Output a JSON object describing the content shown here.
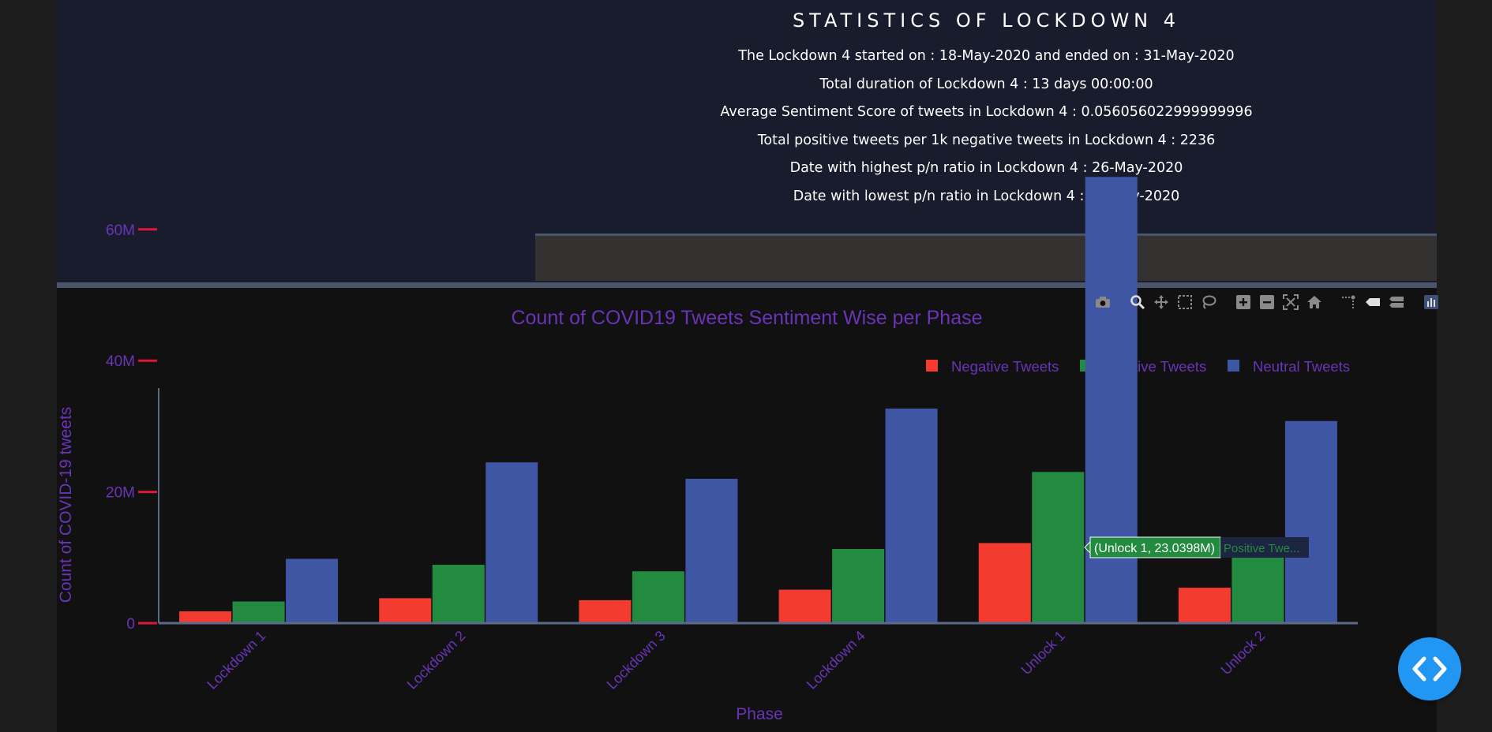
{
  "stats": {
    "title": "STATISTICS OF LOCKDOWN 4",
    "lines": [
      "The Lockdown 4 started on : 18-May-2020 and ended on : 31-May-2020",
      "Total duration of Lockdown 4 : 13 days 00:00:00",
      "Average Sentiment Score of tweets in Lockdown 4 : 0.056056022999999996",
      "Total positive tweets per 1k negative tweets in Lockdown 4 : 2236",
      "Date with highest p/n ratio in Lockdown 4 : 26-May-2020",
      "Date with lowest p/n ratio in Lockdown 4 : 31-May-2020"
    ]
  },
  "modebar": {
    "icons": [
      "camera-icon",
      "zoom-icon",
      "pan-icon",
      "box-select-icon",
      "lasso-icon",
      "zoom-in-icon",
      "zoom-out-icon",
      "autoscale-icon",
      "reset-axes-icon",
      "spike-lines-icon",
      "hover-closest-icon",
      "hover-compare-icon",
      "plotly-logo-icon"
    ]
  },
  "tooltip": {
    "text": "(Unlock 1, 23.0398M)",
    "series": "Positive Twe..."
  },
  "colors": {
    "negative": "#f43b2f",
    "positive": "#228b3f",
    "neutral": "#3f56a4",
    "axis_text": "#6a34b8",
    "tick_mark": "#e0173a",
    "axis_line": "#5a6a88"
  },
  "chart_data": {
    "type": "bar",
    "title": "Count of COVID19 Tweets Sentiment Wise per Phase",
    "xlabel": "Phase",
    "ylabel": "Count of COVID-19 tweets",
    "categories": [
      "Lockdown 1",
      "Lockdown 2",
      "Lockdown 3",
      "Lockdown 4",
      "Unlock 1",
      "Unlock 2"
    ],
    "series": [
      {
        "name": "Negative Tweets",
        "values": [
          1.8,
          3.8,
          3.5,
          5.1,
          12.2,
          5.4
        ]
      },
      {
        "name": "Positive Tweets",
        "values": [
          3.3,
          8.9,
          7.9,
          11.3,
          23.0398,
          10.5
        ]
      },
      {
        "name": "Neutral Tweets",
        "values": [
          9.8,
          24.5,
          22.0,
          32.7,
          68.0,
          30.8
        ]
      }
    ],
    "value_unit": "millions of tweets",
    "yticks": [
      0,
      20,
      40,
      60
    ],
    "ytick_labels": [
      "0",
      "20M",
      "40M",
      "60M"
    ],
    "ylim": [
      0,
      72
    ],
    "legend": "top-right",
    "grid": false
  }
}
